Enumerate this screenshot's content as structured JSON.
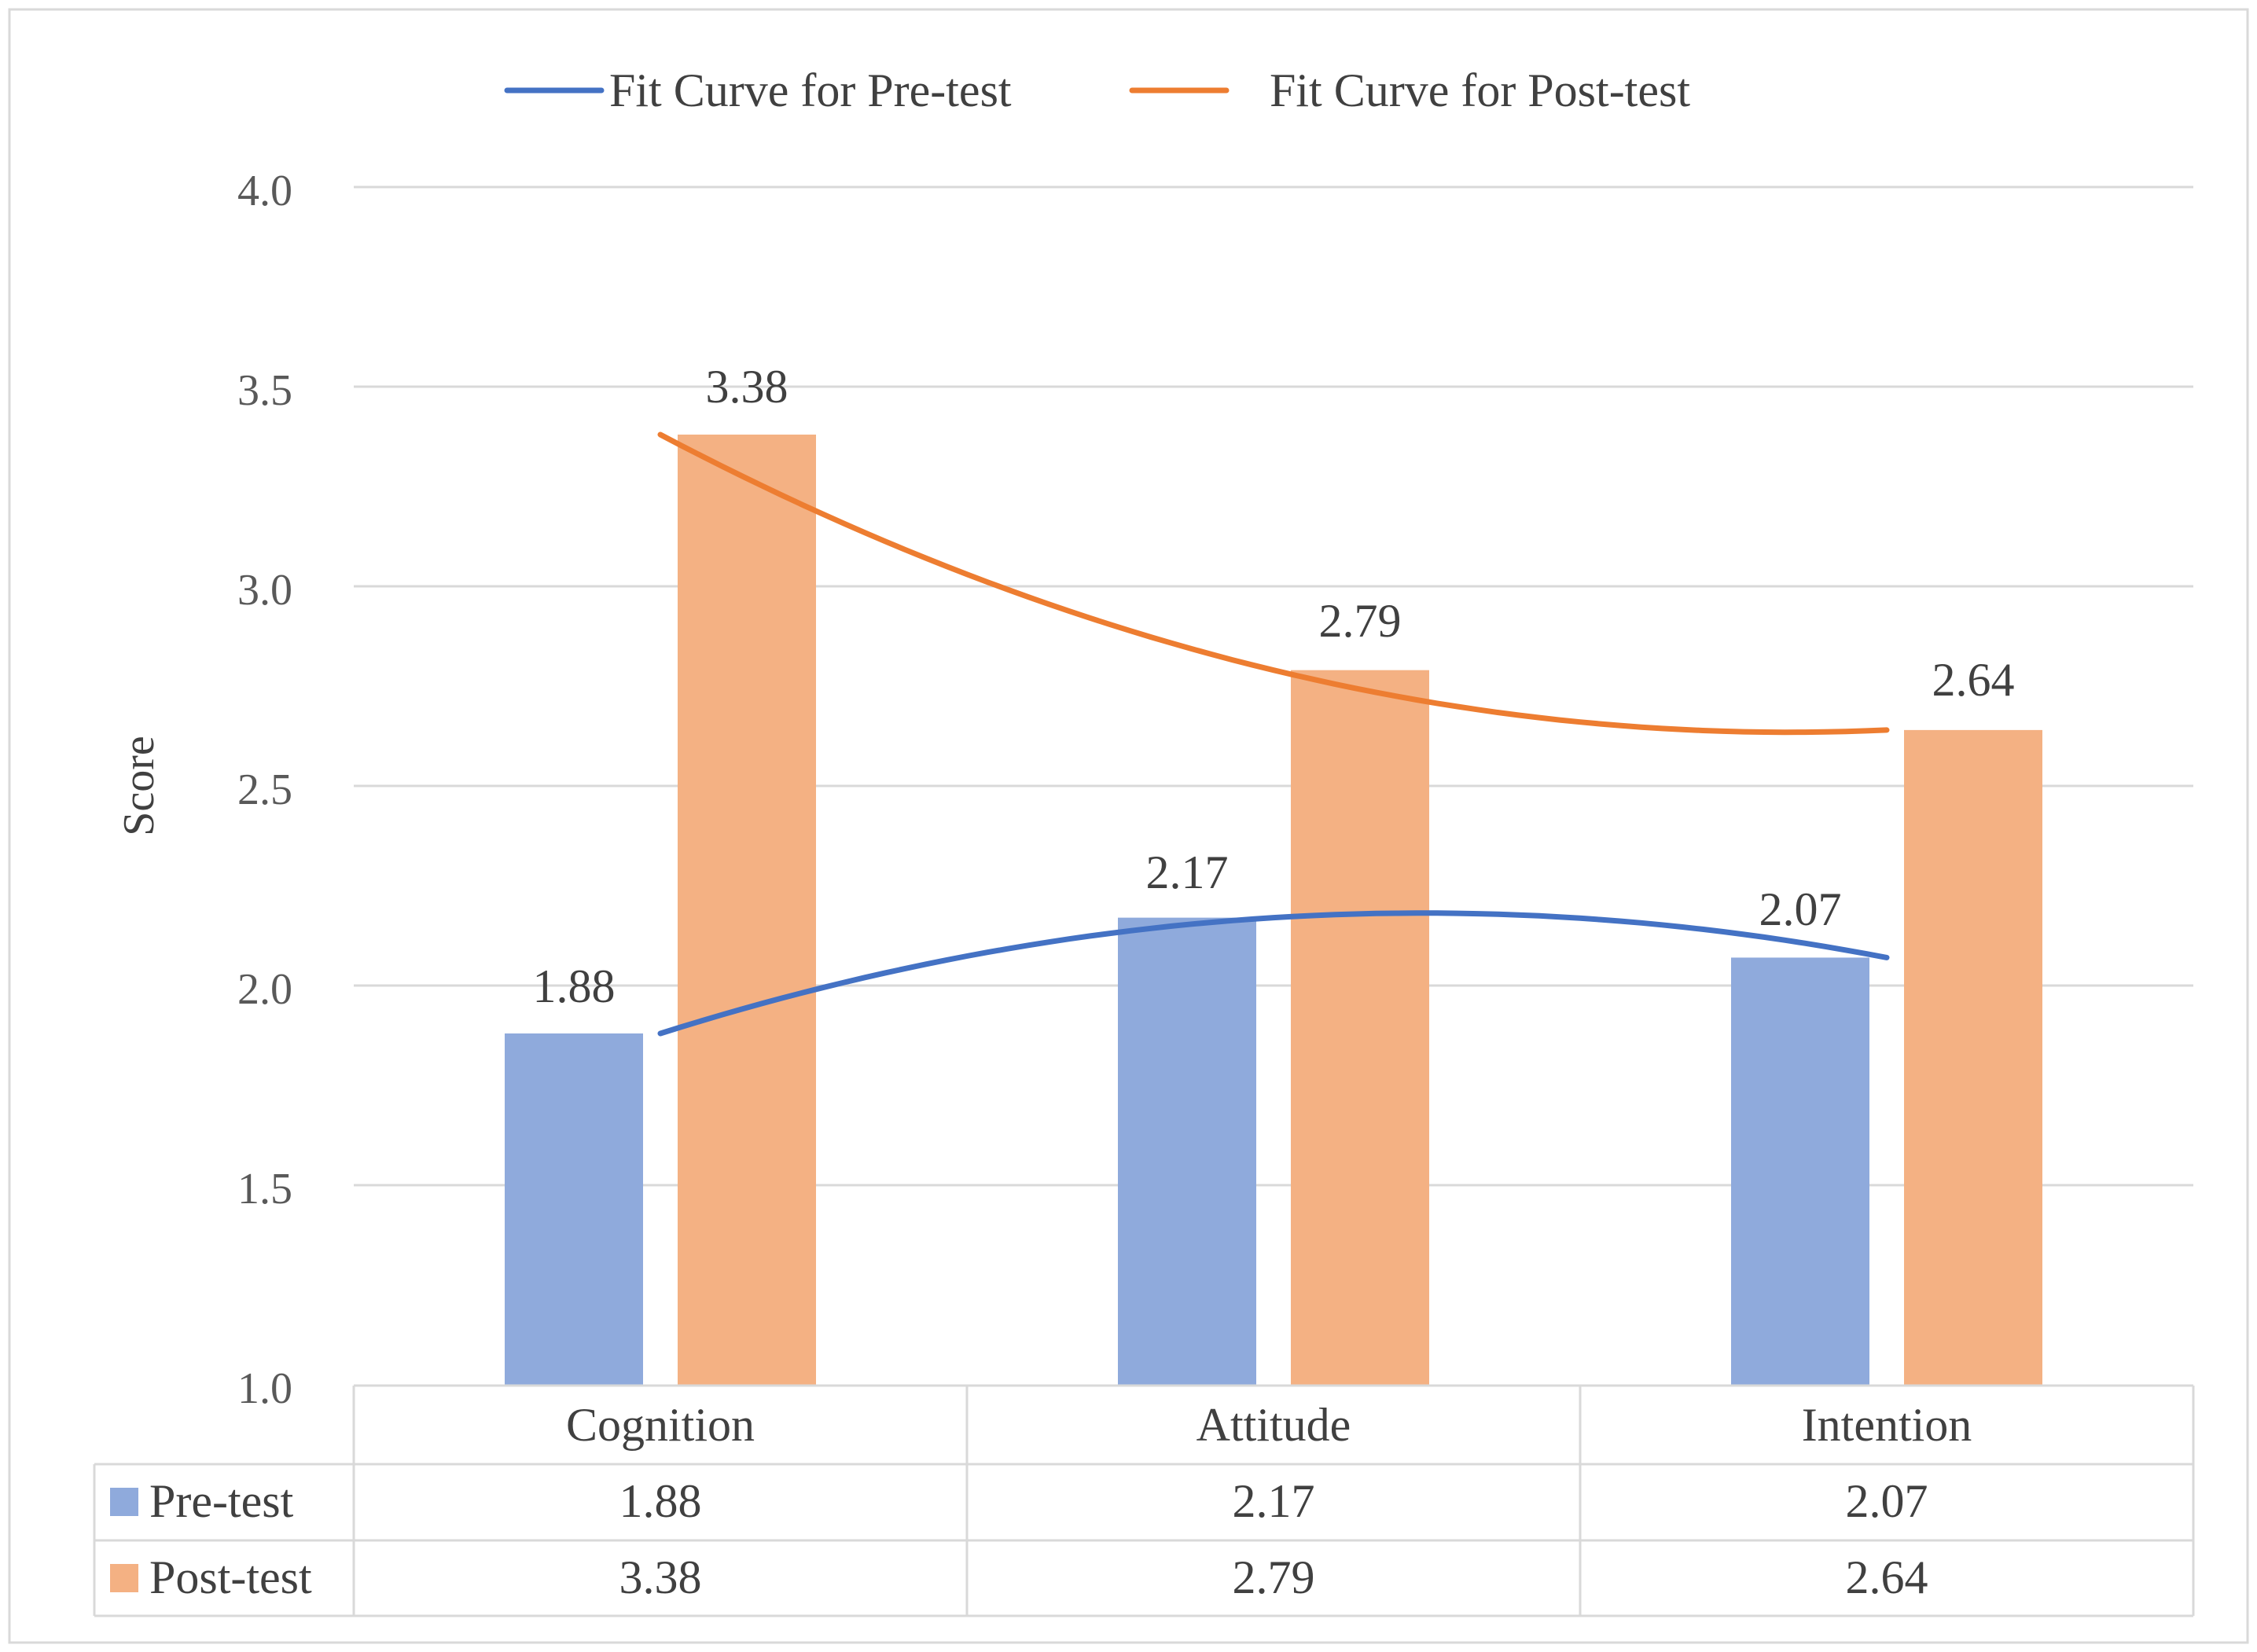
{
  "chart_data": {
    "type": "bar",
    "categories": [
      "Cognition",
      "Attitude",
      "Intention"
    ],
    "series": [
      {
        "name": "Pre-test",
        "values": [
          1.88,
          2.17,
          2.07
        ],
        "color": "#8faadc",
        "data_labels": [
          "1.88",
          "2.17",
          "2.07"
        ]
      },
      {
        "name": "Post-test",
        "values": [
          3.38,
          2.79,
          2.64
        ],
        "color": "#f4b183",
        "data_labels": [
          "3.38",
          "2.79",
          "2.64"
        ]
      }
    ],
    "fit_curves": [
      {
        "name": "Fit Curve for Pre-test",
        "series": "Pre-test",
        "color": "#4472c4",
        "values": [
          1.88,
          2.17,
          2.07
        ]
      },
      {
        "name": "Fit Curve for Post-test",
        "series": "Post-test",
        "color": "#ed7d31",
        "values": [
          3.38,
          2.79,
          2.64
        ]
      }
    ],
    "ylabel": "Score",
    "xlabel": "",
    "ylim": [
      1.0,
      4.0
    ],
    "yticks": [
      "1.0",
      "1.5",
      "2.0",
      "2.5",
      "3.0",
      "3.5",
      "4.0"
    ],
    "grid": true,
    "legend_position": "top",
    "data_table": {
      "rows": [
        {
          "label": "Pre-test",
          "values": [
            "1.88",
            "2.17",
            "2.07"
          ]
        },
        {
          "label": "Post-test",
          "values": [
            "3.38",
            "2.79",
            "2.64"
          ]
        }
      ]
    }
  }
}
